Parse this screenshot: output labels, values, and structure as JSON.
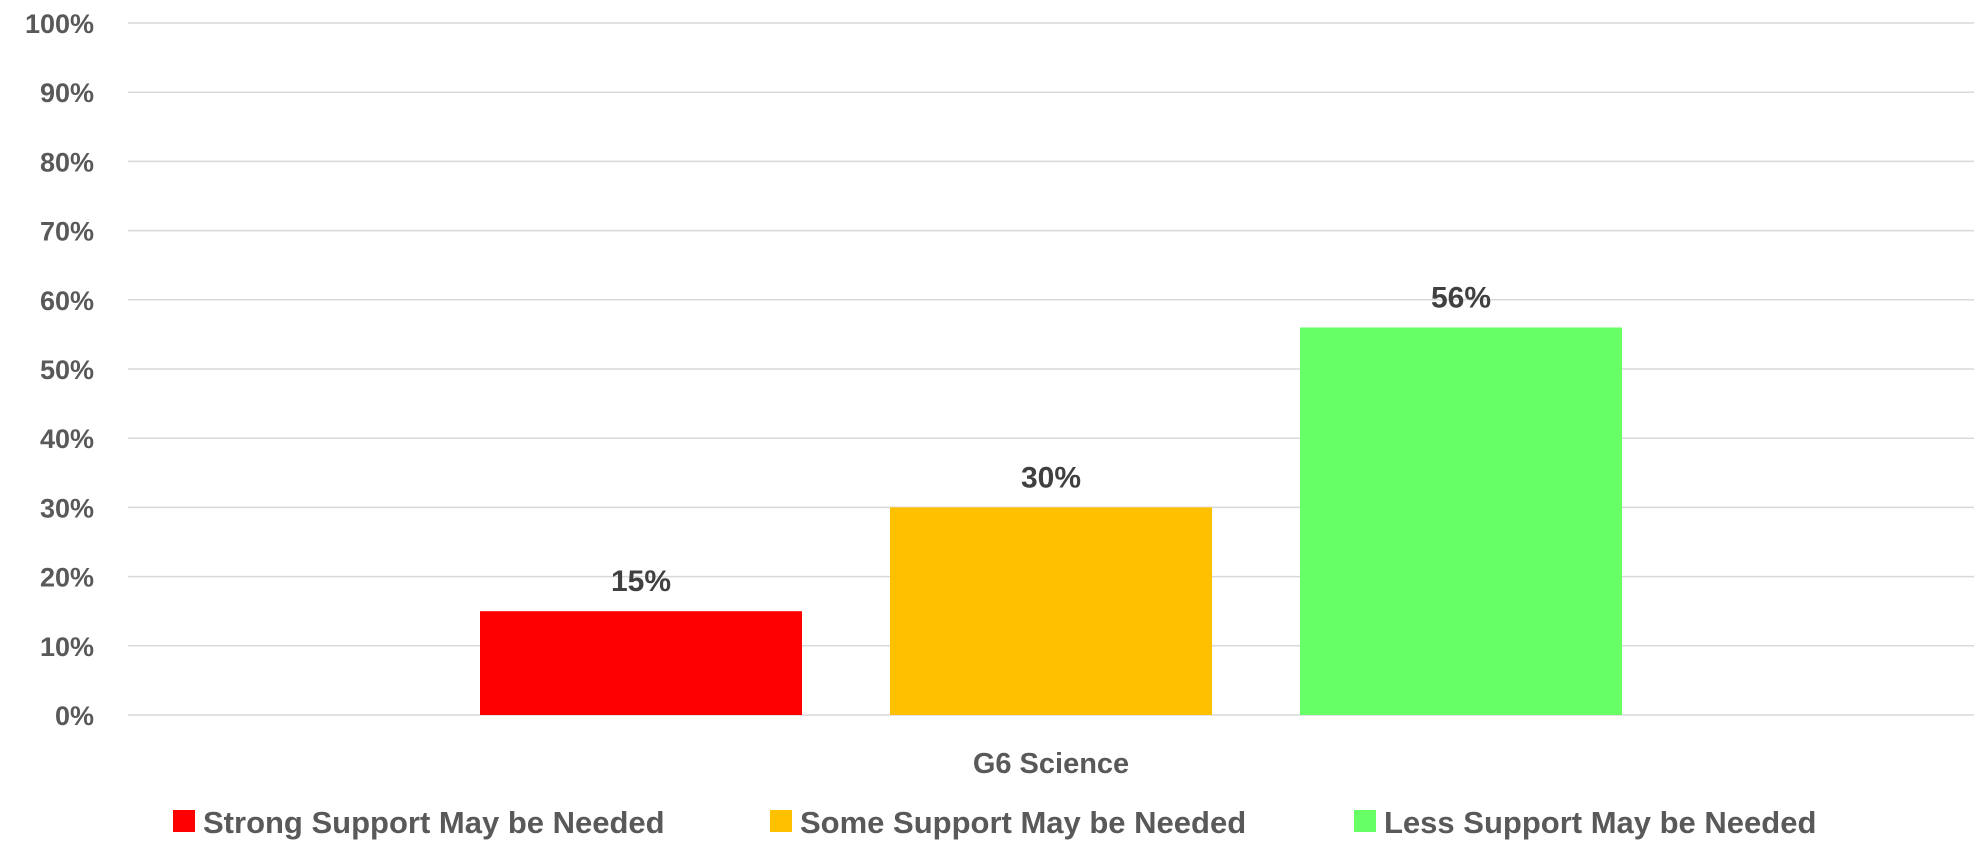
{
  "chart_data": {
    "type": "bar",
    "title": "",
    "xlabel": "",
    "ylabel": "",
    "categories": [
      "G6 Science"
    ],
    "series": [
      {
        "name": "Strong Support May be Needed",
        "values": [
          15
        ],
        "label": "15%",
        "color": "#ff0000"
      },
      {
        "name": "Some Support May be Needed",
        "values": [
          30
        ],
        "label": "30%",
        "color": "#ffc000"
      },
      {
        "name": "Less Support May be Needed",
        "values": [
          56
        ],
        "label": "56%",
        "color": "#66ff66"
      }
    ],
    "ylim": [
      0,
      100
    ],
    "yticks": [
      "0%",
      "10%",
      "20%",
      "30%",
      "40%",
      "50%",
      "60%",
      "70%",
      "80%",
      "90%",
      "100%"
    ],
    "grid": true,
    "legend_position": "bottom"
  }
}
